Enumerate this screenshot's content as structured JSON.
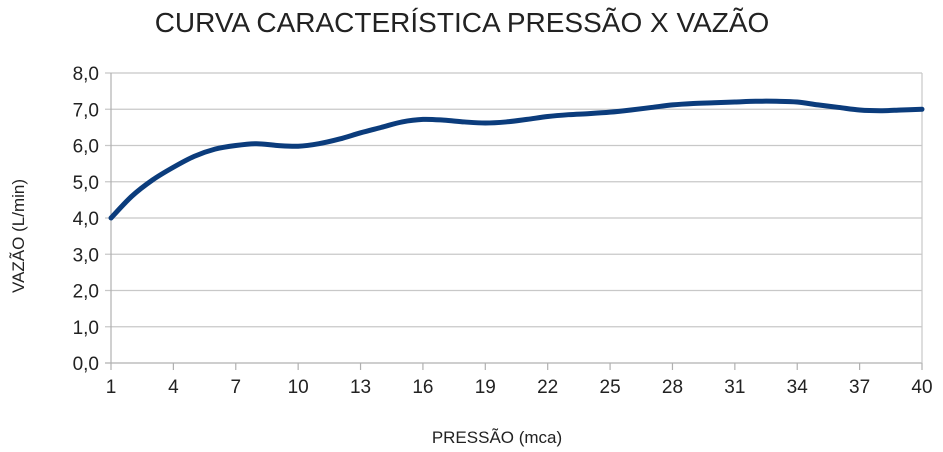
{
  "chart_data": {
    "type": "line",
    "title": "CURVA CARACTERÍSTICA PRESSÃO X VAZÃO",
    "xlabel": "PRESSÃO (mca)",
    "ylabel": "VAZÃO (L/min)",
    "x_ticks": [
      "1",
      "4",
      "7",
      "10",
      "13",
      "16",
      "19",
      "22",
      "25",
      "28",
      "31",
      "34",
      "37",
      "40"
    ],
    "y_ticks": [
      "0,0",
      "1,0",
      "2,0",
      "3,0",
      "4,0",
      "5,0",
      "6,0",
      "7,0",
      "8,0"
    ],
    "ylim": [
      0,
      8
    ],
    "xlim": [
      1,
      40
    ],
    "grid": true,
    "series": [
      {
        "color": "#0b3c7c",
        "x": [
          1,
          2,
          3,
          4,
          5,
          6,
          7,
          8,
          9,
          10,
          11,
          12,
          13,
          14,
          15,
          16,
          17,
          18,
          19,
          20,
          21,
          22,
          23,
          24,
          25,
          26,
          27,
          28,
          29,
          30,
          31,
          32,
          33,
          34,
          35,
          36,
          37,
          38,
          39,
          40
        ],
        "values": [
          4.0,
          4.6,
          5.05,
          5.4,
          5.7,
          5.9,
          6.0,
          6.05,
          6.0,
          5.98,
          6.05,
          6.18,
          6.35,
          6.5,
          6.65,
          6.72,
          6.7,
          6.65,
          6.62,
          6.65,
          6.72,
          6.8,
          6.85,
          6.88,
          6.92,
          6.98,
          7.05,
          7.12,
          7.16,
          7.18,
          7.2,
          7.22,
          7.22,
          7.2,
          7.12,
          7.05,
          6.98,
          6.96,
          6.98,
          7.0
        ]
      }
    ]
  }
}
